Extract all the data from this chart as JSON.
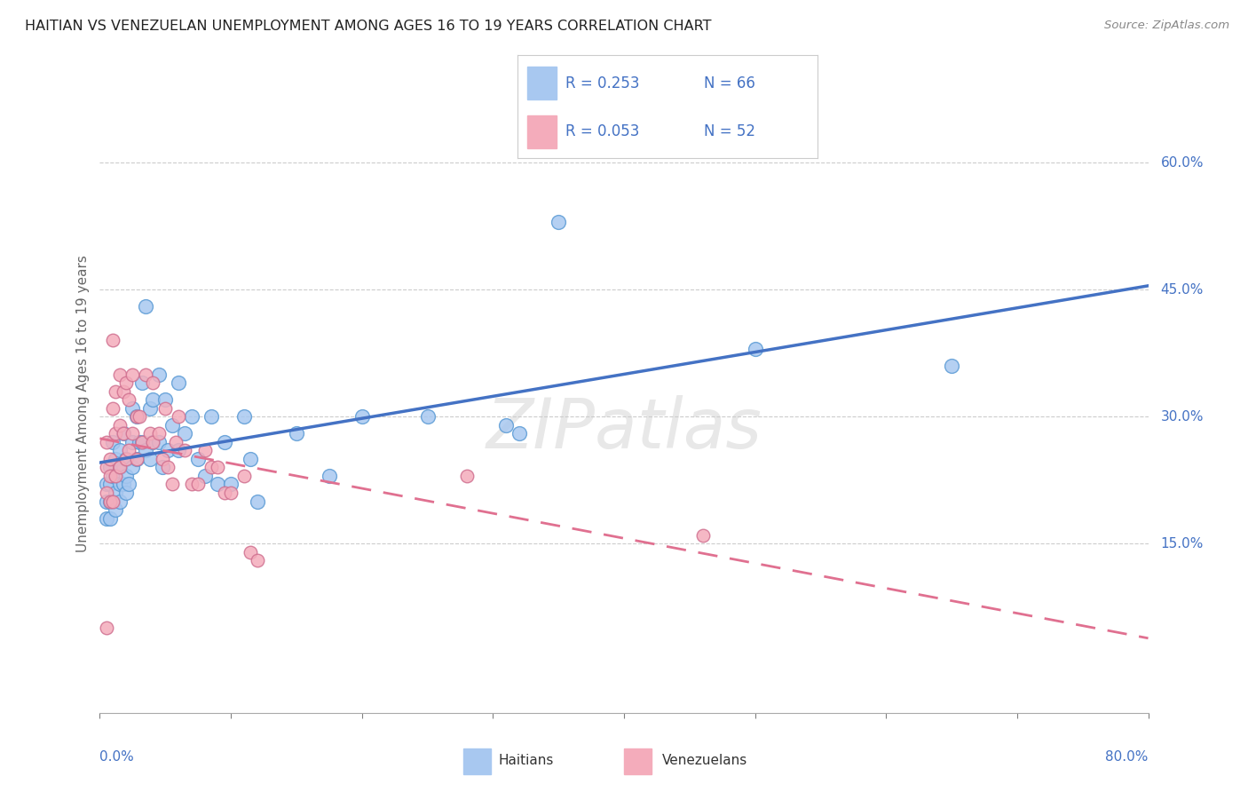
{
  "title": "HAITIAN VS VENEZUELAN UNEMPLOYMENT AMONG AGES 16 TO 19 YEARS CORRELATION CHART",
  "source": "Source: ZipAtlas.com",
  "ylabel": "Unemployment Among Ages 16 to 19 years",
  "ytick_labels": [
    "15.0%",
    "30.0%",
    "45.0%",
    "60.0%"
  ],
  "ytick_values": [
    0.15,
    0.3,
    0.45,
    0.6
  ],
  "xmin": 0.0,
  "xmax": 0.8,
  "ymin": -0.05,
  "ymax": 0.68,
  "haitian_color": "#A8C8F0",
  "haitian_edge": "#5B9BD5",
  "venezuelan_color": "#F4ACBB",
  "venezuelan_edge": "#D07090",
  "trend_haitian_color": "#4472C4",
  "trend_venezuelan_color": "#E07090",
  "legend_R_haitian": "R = 0.253",
  "legend_N_haitian": "N = 66",
  "legend_R_venezuelan": "R = 0.053",
  "legend_N_venezuelan": "N = 52",
  "watermark": "ZIPatlas",
  "haitian_x": [
    0.005,
    0.005,
    0.005,
    0.008,
    0.008,
    0.008,
    0.008,
    0.01,
    0.01,
    0.01,
    0.012,
    0.012,
    0.012,
    0.012,
    0.015,
    0.015,
    0.015,
    0.015,
    0.018,
    0.018,
    0.02,
    0.02,
    0.02,
    0.022,
    0.025,
    0.025,
    0.025,
    0.028,
    0.028,
    0.03,
    0.032,
    0.032,
    0.035,
    0.035,
    0.038,
    0.038,
    0.04,
    0.04,
    0.045,
    0.045,
    0.048,
    0.05,
    0.052,
    0.055,
    0.06,
    0.06,
    0.065,
    0.07,
    0.075,
    0.08,
    0.085,
    0.09,
    0.095,
    0.1,
    0.11,
    0.115,
    0.12,
    0.15,
    0.175,
    0.2,
    0.25,
    0.31,
    0.32,
    0.35,
    0.5,
    0.65
  ],
  "haitian_y": [
    0.22,
    0.2,
    0.18,
    0.24,
    0.22,
    0.2,
    0.18,
    0.27,
    0.23,
    0.2,
    0.25,
    0.23,
    0.21,
    0.19,
    0.26,
    0.24,
    0.22,
    0.2,
    0.28,
    0.22,
    0.25,
    0.23,
    0.21,
    0.22,
    0.31,
    0.27,
    0.24,
    0.3,
    0.25,
    0.27,
    0.34,
    0.27,
    0.43,
    0.26,
    0.31,
    0.25,
    0.32,
    0.27,
    0.35,
    0.27,
    0.24,
    0.32,
    0.26,
    0.29,
    0.34,
    0.26,
    0.28,
    0.3,
    0.25,
    0.23,
    0.3,
    0.22,
    0.27,
    0.22,
    0.3,
    0.25,
    0.2,
    0.28,
    0.23,
    0.3,
    0.3,
    0.29,
    0.28,
    0.53,
    0.38,
    0.36
  ],
  "venezuelan_x": [
    0.005,
    0.005,
    0.005,
    0.005,
    0.008,
    0.008,
    0.008,
    0.01,
    0.01,
    0.01,
    0.012,
    0.012,
    0.012,
    0.015,
    0.015,
    0.015,
    0.018,
    0.018,
    0.02,
    0.02,
    0.022,
    0.022,
    0.025,
    0.025,
    0.028,
    0.028,
    0.03,
    0.032,
    0.035,
    0.038,
    0.04,
    0.04,
    0.045,
    0.048,
    0.05,
    0.052,
    0.055,
    0.058,
    0.06,
    0.065,
    0.07,
    0.075,
    0.08,
    0.085,
    0.09,
    0.095,
    0.1,
    0.11,
    0.115,
    0.12,
    0.28,
    0.46
  ],
  "venezuelan_y": [
    0.27,
    0.24,
    0.21,
    0.05,
    0.25,
    0.23,
    0.2,
    0.39,
    0.31,
    0.2,
    0.33,
    0.28,
    0.23,
    0.35,
    0.29,
    0.24,
    0.33,
    0.28,
    0.34,
    0.25,
    0.32,
    0.26,
    0.35,
    0.28,
    0.3,
    0.25,
    0.3,
    0.27,
    0.35,
    0.28,
    0.34,
    0.27,
    0.28,
    0.25,
    0.31,
    0.24,
    0.22,
    0.27,
    0.3,
    0.26,
    0.22,
    0.22,
    0.26,
    0.24,
    0.24,
    0.21,
    0.21,
    0.23,
    0.14,
    0.13,
    0.23,
    0.16
  ]
}
